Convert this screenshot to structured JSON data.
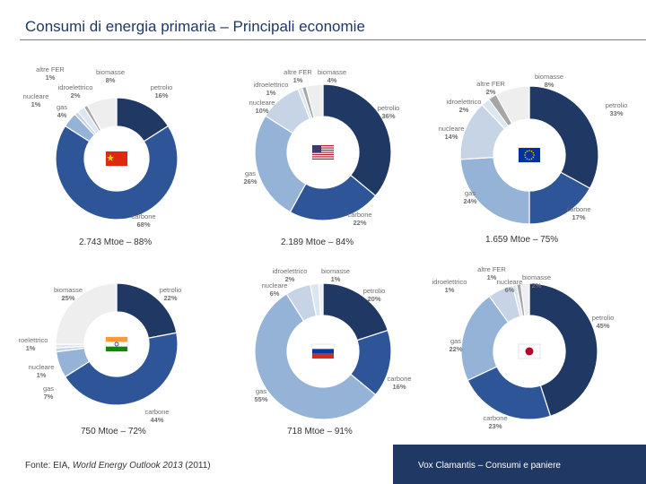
{
  "title": "Consumi di energia primaria – Principali economie",
  "palette": {
    "petrolio": "#1f3864",
    "carbone": "#2e5597",
    "gas": "#95b3d7",
    "nucleare": "#c6d4e6",
    "idroelettrico": "#dce6f1",
    "altre_fer": "#a6a6a6",
    "biomasse": "#eeeeee",
    "label": "#6e6e6e"
  },
  "chart_data": [
    {
      "type": "pie",
      "country": "Cina",
      "flag": "china-flag",
      "caption": "2.743 Mtoe – 88%",
      "slices": [
        {
          "key": "petrolio",
          "label": "petrolio",
          "value": 16,
          "pct": "16%"
        },
        {
          "key": "carbone",
          "label": "carbone",
          "value": 68,
          "pct": "68%"
        },
        {
          "key": "gas",
          "label": "gas",
          "value": 4,
          "pct": "4%"
        },
        {
          "key": "nucleare",
          "label": "nucleare",
          "value": 1,
          "pct": "1%"
        },
        {
          "key": "idroelettrico",
          "label": "idroelettrico",
          "value": 2,
          "pct": "2%"
        },
        {
          "key": "altre_fer",
          "label": "altre FER",
          "value": 1,
          "pct": "1%"
        },
        {
          "key": "biomasse",
          "label": "biomasse",
          "value": 8,
          "pct": "8%"
        }
      ]
    },
    {
      "type": "pie",
      "country": "Stati Uniti",
      "flag": "usa-flag",
      "caption": "2.189 Mtoe – 84%",
      "slices": [
        {
          "key": "petrolio",
          "label": "petrolio",
          "value": 36,
          "pct": "36%"
        },
        {
          "key": "carbone",
          "label": "carbone",
          "value": 22,
          "pct": "22%"
        },
        {
          "key": "gas",
          "label": "gas",
          "value": 26,
          "pct": "26%"
        },
        {
          "key": "nucleare",
          "label": "nucleare",
          "value": 10,
          "pct": "10%"
        },
        {
          "key": "idroelettrico",
          "label": "idroelettrico",
          "value": 1,
          "pct": "1%"
        },
        {
          "key": "altre_fer",
          "label": "altre FER",
          "value": 1,
          "pct": "1%"
        },
        {
          "key": "biomasse",
          "label": "biomasse",
          "value": 4,
          "pct": "4%"
        }
      ]
    },
    {
      "type": "pie",
      "country": "Unione Europea",
      "flag": "eu-flag",
      "caption": "1.659 Mtoe – 75%",
      "slices": [
        {
          "key": "petrolio",
          "label": "petrolio",
          "value": 33,
          "pct": "33%"
        },
        {
          "key": "carbone",
          "label": "carbone",
          "value": 17,
          "pct": "17%"
        },
        {
          "key": "gas",
          "label": "gas",
          "value": 24,
          "pct": "24%"
        },
        {
          "key": "nucleare",
          "label": "nucleare",
          "value": 14,
          "pct": "14%"
        },
        {
          "key": "idroelettrico",
          "label": "idroelettrico",
          "value": 2,
          "pct": "2%"
        },
        {
          "key": "altre_fer",
          "label": "altre FER",
          "value": 2,
          "pct": "2%"
        },
        {
          "key": "biomasse",
          "label": "biomasse",
          "value": 8,
          "pct": "8%"
        }
      ]
    },
    {
      "type": "pie",
      "country": "India",
      "flag": "india-flag",
      "caption": "750 Mtoe – 72%",
      "slices": [
        {
          "key": "petrolio",
          "label": "petrolio",
          "value": 22,
          "pct": "22%"
        },
        {
          "key": "carbone",
          "label": "carbone",
          "value": 44,
          "pct": "44%"
        },
        {
          "key": "gas",
          "label": "gas",
          "value": 7,
          "pct": "7%"
        },
        {
          "key": "nucleare",
          "label": "nucleare",
          "value": 1,
          "pct": "1%"
        },
        {
          "key": "idroelettrico",
          "label": "idroelettrico",
          "value": 1,
          "pct": "1%"
        },
        {
          "key": "biomasse",
          "label": "biomasse",
          "value": 25,
          "pct": "25%"
        }
      ]
    },
    {
      "type": "pie",
      "country": "Russia",
      "flag": "russia-flag",
      "caption": "718 Mtoe – 91%",
      "slices": [
        {
          "key": "petrolio",
          "label": "petrolio",
          "value": 20,
          "pct": "20%"
        },
        {
          "key": "carbone",
          "label": "carbone",
          "value": 16,
          "pct": "16%"
        },
        {
          "key": "gas",
          "label": "gas",
          "value": 55,
          "pct": "55%"
        },
        {
          "key": "nucleare",
          "label": "nucleare",
          "value": 6,
          "pct": "6%"
        },
        {
          "key": "idroelettrico",
          "label": "idroelettrico",
          "value": 2,
          "pct": "2%"
        },
        {
          "key": "biomasse",
          "label": "biomasse",
          "value": 1,
          "pct": "1%"
        }
      ]
    },
    {
      "type": "pie",
      "country": "Giappone",
      "flag": "japan-flag",
      "slices": [
        {
          "key": "petrolio",
          "label": "petrolio",
          "value": 45,
          "pct": "45%"
        },
        {
          "key": "carbone",
          "label": "carbone",
          "value": 23,
          "pct": "23%"
        },
        {
          "key": "gas",
          "label": "gas",
          "value": 22,
          "pct": "22%"
        },
        {
          "key": "nucleare",
          "label": "nucleare",
          "value": 6,
          "pct": "6%"
        },
        {
          "key": "idroelettrico",
          "label": "idroelettrico",
          "value": 1,
          "pct": "1%"
        },
        {
          "key": "altre_fer",
          "label": "altre FER",
          "value": 1,
          "pct": "1%"
        },
        {
          "key": "biomasse",
          "label": "biomasse",
          "value": 2,
          "pct": "2%"
        }
      ]
    }
  ],
  "source": {
    "prefix": "Fonte: EIA, ",
    "italic": "World Energy Outlook 2013",
    "suffix": " (2011)"
  },
  "footer": "Vox Clamantis – Consumi e paniere"
}
